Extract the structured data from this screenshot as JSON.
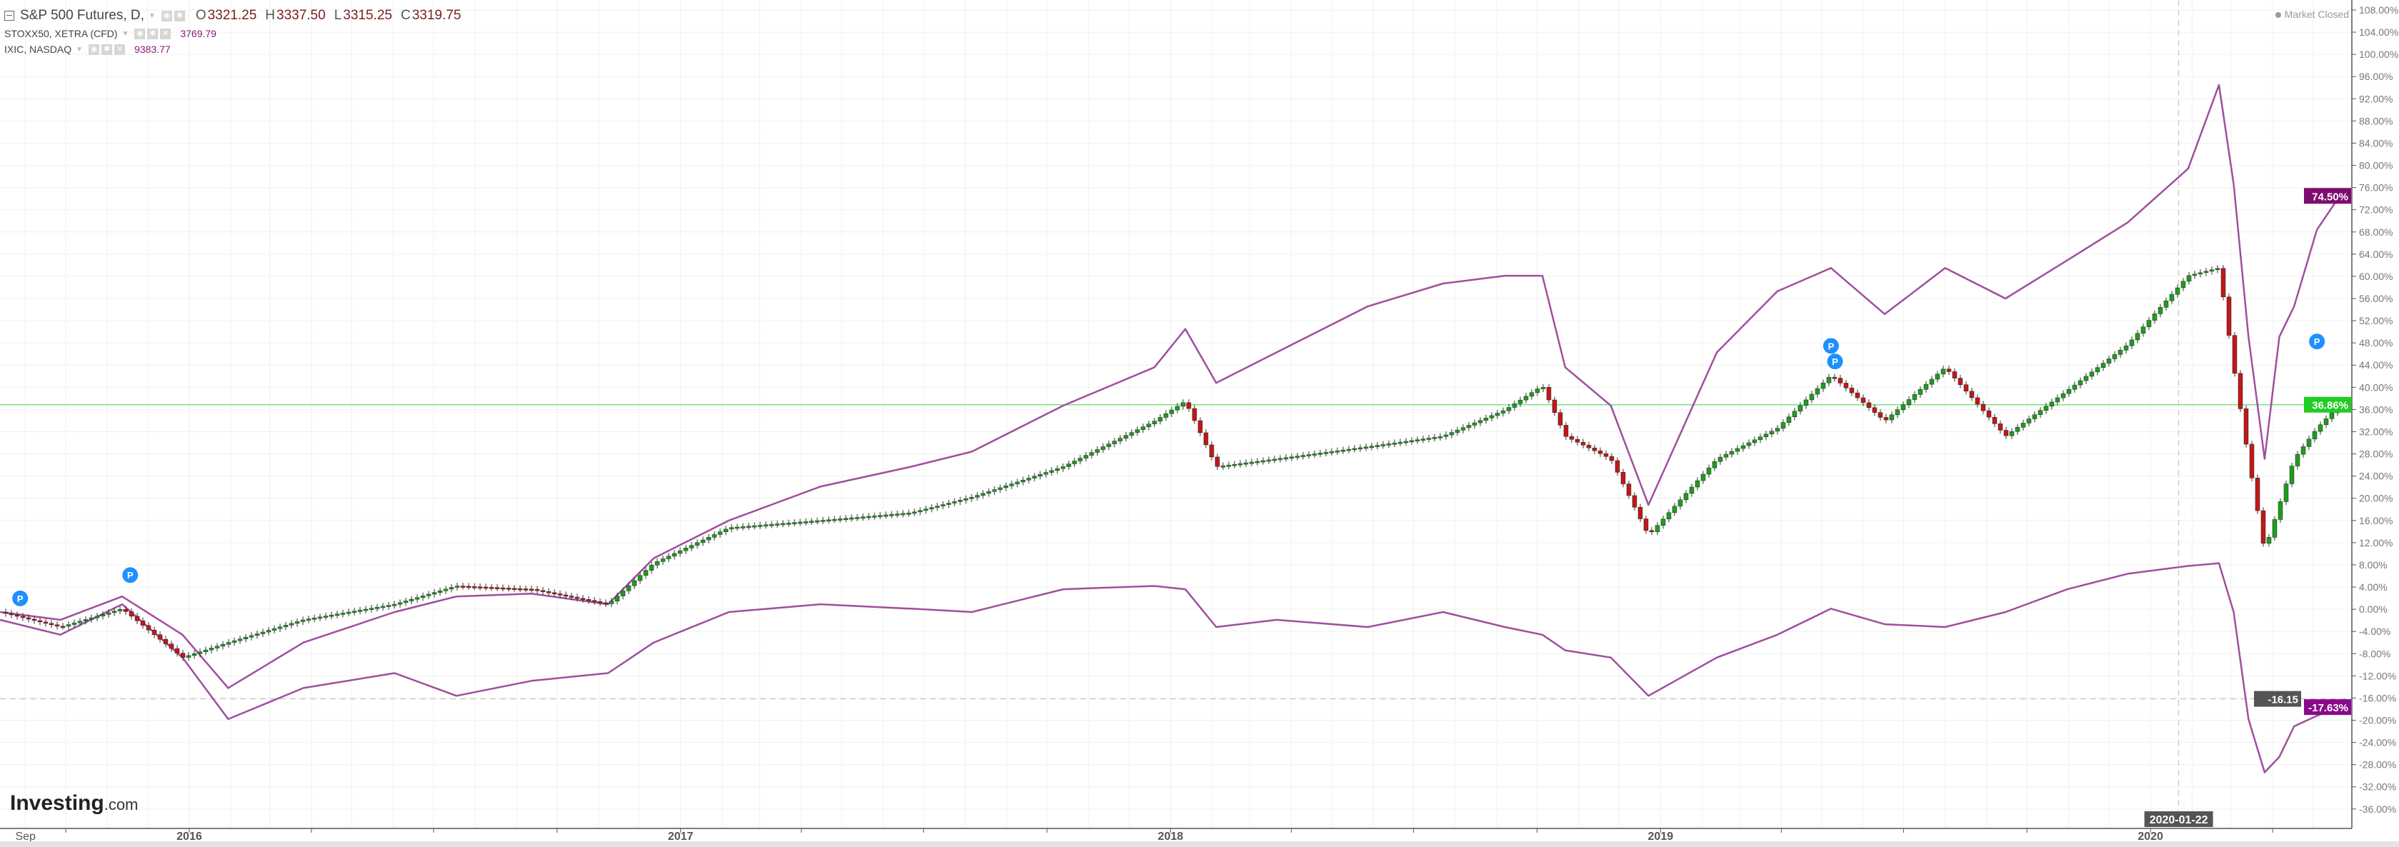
{
  "legend": {
    "main": {
      "symbol": "S&P 500 Futures, D,",
      "open_label": "O",
      "open": "3321.25",
      "high_label": "H",
      "high": "3337.50",
      "low_label": "L",
      "low": "3315.25",
      "close_label": "C",
      "close": "3319.75"
    },
    "series2": {
      "symbol": "STOXX50, XETRA (CFD)",
      "value": "3769.79"
    },
    "series3": {
      "symbol": "IXIC, NASDAQ",
      "value": "9383.77"
    }
  },
  "status": "Market Closed",
  "logo": {
    "brand": "Investing",
    ".com": ".com"
  },
  "crosshair": {
    "date_label": "2020-01-22",
    "value_label": "-16.15",
    "value": -16.15
  },
  "colors": {
    "up": "#1e9c1e",
    "down": "#c01818",
    "purple": "#a04f9e",
    "purple_label": "#7e0c6e",
    "green_label": "#22cc22",
    "grid": "#f0f0f0"
  },
  "chart_data": {
    "type": "line",
    "scale": "percent",
    "xlim": [
      "2015-08-13",
      "2020-05-30"
    ],
    "ylim": [
      -39.5,
      109.8
    ],
    "grid": true,
    "yticks": [
      108,
      104,
      100,
      96,
      92,
      88,
      84,
      80,
      76,
      72,
      68,
      64,
      60,
      56,
      52,
      48,
      44,
      40,
      36,
      32,
      28,
      24,
      20,
      16,
      12,
      8,
      4,
      0,
      -4,
      -8,
      -12,
      -16,
      -20,
      -24,
      -28,
      -32,
      -36
    ],
    "xticks": [
      {
        "date": "2015-09-01",
        "label": "Sep"
      },
      {
        "date": "2016-01-01",
        "label": "2016"
      },
      {
        "date": "2017-01-01",
        "label": "2017"
      },
      {
        "date": "2018-01-01",
        "label": "2018"
      },
      {
        "date": "2019-01-01",
        "label": "2019"
      },
      {
        "date": "2020-01-01",
        "label": "2020"
      }
    ],
    "dates": [
      "2015-08-13",
      "2015-09-27",
      "2015-11-12",
      "2015-12-27",
      "2016-01-30",
      "2016-03-26",
      "2016-06-02",
      "2016-07-18",
      "2016-09-12",
      "2016-11-08",
      "2016-12-12",
      "2017-02-06",
      "2017-04-15",
      "2017-06-22",
      "2017-08-06",
      "2017-10-13",
      "2017-12-20",
      "2018-01-12",
      "2018-02-04",
      "2018-03-21",
      "2018-05-28",
      "2018-07-23",
      "2018-09-07",
      "2018-10-05",
      "2018-10-22",
      "2018-11-25",
      "2018-12-23",
      "2019-02-12",
      "2019-03-29",
      "2019-05-08",
      "2019-06-17",
      "2019-08-01",
      "2019-09-15",
      "2019-10-31",
      "2019-12-15",
      "2020-01-29",
      "2020-02-21",
      "2020-03-03",
      "2020-03-14",
      "2020-03-26",
      "2020-04-06",
      "2020-04-17",
      "2020-05-04",
      "2020-05-21"
    ],
    "series": [
      {
        "name": "S&P 500 Futures, D,",
        "style": "candles",
        "last_label": "36.86%",
        "last": 36.86,
        "values": [
          -0.5,
          -3.2,
          0.1,
          -8.7,
          -6,
          -1.9,
          0.9,
          4.2,
          3.6,
          0.9,
          8.3,
          14.7,
          16,
          17.4,
          20.2,
          25.7,
          33.9,
          37.5,
          25.7,
          27.1,
          29.3,
          31.2,
          35.9,
          40.3,
          31.2,
          27.1,
          13.3,
          27.1,
          32.6,
          42.2,
          33.9,
          43.6,
          31.2,
          39.4,
          47.7,
          60.1,
          61.5,
          43.6,
          27.1,
          10.5,
          18.8,
          27.1,
          32.6,
          36.9
        ]
      },
      {
        "name": "STOXX50, XETRA (CFD)",
        "style": "line",
        "last_label": "-17.63%",
        "last": -17.63,
        "values": [
          -1.9,
          -4.6,
          0.9,
          -8.7,
          -19.8,
          -14.2,
          -11.5,
          -15.6,
          -12.9,
          -11.5,
          -6,
          -0.5,
          0.9,
          0.1,
          -0.5,
          3.6,
          4.2,
          3.6,
          -3.2,
          -1.9,
          -3.2,
          -0.5,
          -3.2,
          -4.6,
          -7.4,
          -8.7,
          -15.6,
          -8.7,
          -4.6,
          0.1,
          -2.7,
          -3.2,
          -0.5,
          3.6,
          6.4,
          7.8,
          8.3,
          -0.5,
          -19.8,
          -29.4,
          -26.6,
          -21.1,
          -19.2,
          -17.6
        ]
      },
      {
        "name": "IXIC, NASDAQ",
        "style": "line",
        "last_label": "74.50%",
        "last": 74.5,
        "values": [
          -0.5,
          -1.9,
          2.3,
          -4.6,
          -14.2,
          -6,
          -0.5,
          2.3,
          2.8,
          0.9,
          9.2,
          16,
          22.1,
          25.7,
          28.4,
          36.7,
          43.6,
          50.5,
          40.8,
          46.3,
          54.6,
          58.7,
          60.1,
          60.1,
          43.6,
          36.7,
          18.8,
          46.3,
          57.3,
          61.5,
          53.2,
          61.5,
          56,
          62.9,
          69.7,
          79.4,
          94.5,
          76.6,
          49.1,
          27.1,
          49.1,
          54.6,
          68.4,
          74.5
        ]
      }
    ],
    "event_markers": [
      {
        "date": "2015-08-28",
        "value": -1.9,
        "label": "P"
      },
      {
        "date": "2015-11-18",
        "value": 2.3,
        "label": "P"
      },
      {
        "date": "2019-05-08",
        "value": 43.6,
        "label": "P"
      },
      {
        "date": "2019-05-11",
        "value": 40.8,
        "label": "P"
      },
      {
        "date": "2020-05-04",
        "value": 44.4,
        "label": "P"
      }
    ]
  }
}
